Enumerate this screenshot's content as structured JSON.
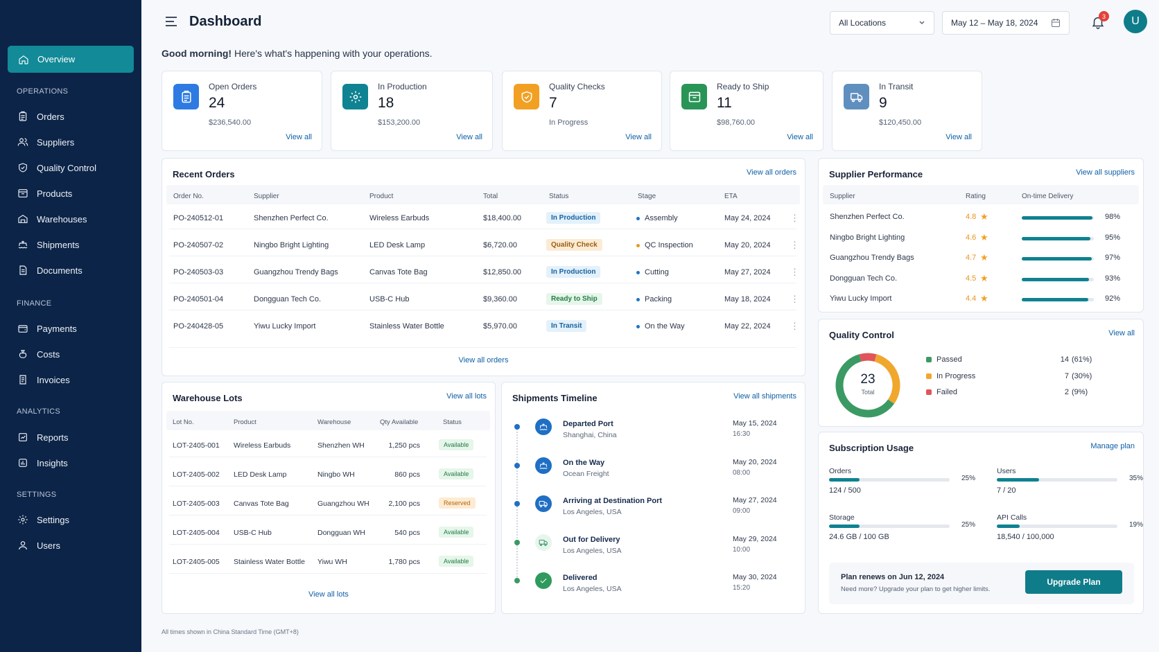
{
  "page": {
    "title": "Dashboard"
  },
  "sidebar": {
    "overview": "Overview",
    "sections": [
      {
        "label": "OPERATIONS",
        "items": [
          {
            "label": "Orders",
            "icon": "clipboard-icon"
          },
          {
            "label": "Suppliers",
            "icon": "users-icon"
          },
          {
            "label": "Quality Control",
            "icon": "shield-check-icon"
          },
          {
            "label": "Products",
            "icon": "box-icon"
          },
          {
            "label": "Warehouses",
            "icon": "warehouse-icon"
          },
          {
            "label": "Shipments",
            "icon": "ship-icon"
          },
          {
            "label": "Documents",
            "icon": "document-icon"
          }
        ]
      },
      {
        "label": "FINANCE",
        "items": [
          {
            "label": "Payments",
            "icon": "wallet-icon"
          },
          {
            "label": "Costs",
            "icon": "money-bag-icon"
          },
          {
            "label": "Invoices",
            "icon": "invoice-icon"
          }
        ]
      },
      {
        "label": "ANALYTICS",
        "items": [
          {
            "label": "Reports",
            "icon": "report-icon"
          },
          {
            "label": "Insights",
            "icon": "insights-icon"
          }
        ]
      },
      {
        "label": "SETTINGS",
        "items": [
          {
            "label": "Settings",
            "icon": "gear-icon"
          },
          {
            "label": "Users",
            "icon": "user-icon"
          }
        ]
      }
    ]
  },
  "header": {
    "location_select": "All Locations",
    "date_range": "May 12 – May 18, 2024",
    "notification_count": "3",
    "avatar_initial": "U"
  },
  "greeting": {
    "bold": "Good morning!",
    "text": " Here's what's happening with your operations."
  },
  "stats": [
    {
      "label": "Open Orders",
      "value": "24",
      "sub": "$236,540.00",
      "link": "View all",
      "color": "#2d7be2",
      "icon": "clipboard-icon"
    },
    {
      "label": "In Production",
      "value": "18",
      "sub": "$153,200.00",
      "link": "View all",
      "color": "#0f8391",
      "icon": "gear-icon"
    },
    {
      "label": "Quality Checks",
      "value": "7",
      "sub": "In Progress",
      "link": "View all",
      "color": "#f2a023",
      "icon": "shield-check-icon"
    },
    {
      "label": "Ready to Ship",
      "value": "11",
      "sub": "$98,760.00",
      "link": "View all",
      "color": "#289556",
      "icon": "box-icon"
    },
    {
      "label": "In Transit",
      "value": "9",
      "sub": "$120,450.00",
      "link": "View all",
      "color": "#5f8fbf",
      "icon": "truck-icon"
    }
  ],
  "recent_orders": {
    "title": "Recent Orders",
    "link": "View all orders",
    "footer_link": "View all orders",
    "columns": [
      "Order No.",
      "Supplier",
      "Product",
      "Total",
      "Status",
      "Stage",
      "ETA"
    ],
    "rows": [
      {
        "order": "PO-240512-01",
        "supplier": "Shenzhen Perfect Co.",
        "product": "Wireless Earbuds",
        "total": "$18,400.00",
        "status": "In Production",
        "status_kind": "blue",
        "stage": "Assembly",
        "stage_color": "#1f74c7",
        "eta": "May 24, 2024"
      },
      {
        "order": "PO-240507-02",
        "supplier": "Ningbo Bright Lighting",
        "product": "LED Desk Lamp",
        "total": "$6,720.00",
        "status": "Quality Check",
        "status_kind": "amber",
        "stage": "QC Inspection",
        "stage_color": "#e59a24",
        "eta": "May 20, 2024"
      },
      {
        "order": "PO-240503-03",
        "supplier": "Guangzhou Trendy Bags",
        "product": "Canvas Tote Bag",
        "total": "$12,850.00",
        "status": "In Production",
        "status_kind": "blue",
        "stage": "Cutting",
        "stage_color": "#1f74c7",
        "eta": "May 27, 2024"
      },
      {
        "order": "PO-240501-04",
        "supplier": "Dongguan Tech Co.",
        "product": "USB-C Hub",
        "total": "$9,360.00",
        "status": "Ready to Ship",
        "status_kind": "green",
        "stage": "Packing",
        "stage_color": "#1f74c7",
        "eta": "May 18, 2024"
      },
      {
        "order": "PO-240428-05",
        "supplier": "Yiwu Lucky Import",
        "product": "Stainless Water Bottle",
        "total": "$5,970.00",
        "status": "In Transit",
        "status_kind": "blue",
        "stage": "On the Way",
        "stage_color": "#1f74c7",
        "eta": "May 22, 2024"
      }
    ]
  },
  "supplier_performance": {
    "title": "Supplier Performance",
    "link": "View all suppliers",
    "columns": [
      "Supplier",
      "Rating",
      "On-time Delivery"
    ],
    "rows": [
      {
        "name": "Shenzhen Perfect Co.",
        "rating": "4.8",
        "ontime": "98%",
        "ontime_frac": 0.98
      },
      {
        "name": "Ningbo Bright Lighting",
        "rating": "4.6",
        "ontime": "95%",
        "ontime_frac": 0.95
      },
      {
        "name": "Guangzhou Trendy Bags",
        "rating": "4.7",
        "ontime": "97%",
        "ontime_frac": 0.97
      },
      {
        "name": "Dongguan Tech Co.",
        "rating": "4.5",
        "ontime": "93%",
        "ontime_frac": 0.93
      },
      {
        "name": "Yiwu Lucky Import",
        "rating": "4.4",
        "ontime": "92%",
        "ontime_frac": 0.92
      }
    ]
  },
  "quality_control": {
    "title": "Quality Control",
    "link": "View all",
    "total": "23",
    "total_label": "Total",
    "legend": [
      {
        "label": "Passed",
        "value": "14",
        "pct": "(61%)",
        "color": "#3b9a63",
        "count": 14
      },
      {
        "label": "In Progress",
        "value": "7",
        "pct": "(30%)",
        "color": "#f0a72e",
        "count": 7
      },
      {
        "label": "Failed",
        "value": "2",
        "pct": "(9%)",
        "color": "#e0555a",
        "count": 2
      }
    ]
  },
  "warehouse_lots": {
    "title": "Warehouse Lots",
    "link": "View all lots",
    "footer_link": "View all lots",
    "columns": [
      "Lot No.",
      "Product",
      "Warehouse",
      "Qty Available",
      "Status"
    ],
    "rows": [
      {
        "lot": "LOT-2405-001",
        "product": "Wireless Earbuds",
        "warehouse": "Shenzhen WH",
        "qty": "1,250 pcs",
        "status": "Available",
        "kind": "green"
      },
      {
        "lot": "LOT-2405-002",
        "product": "LED Desk Lamp",
        "warehouse": "Ningbo WH",
        "qty": "860 pcs",
        "status": "Available",
        "kind": "green"
      },
      {
        "lot": "LOT-2405-003",
        "product": "Canvas Tote Bag",
        "warehouse": "Guangzhou WH",
        "qty": "2,100 pcs",
        "status": "Reserved",
        "kind": "orange"
      },
      {
        "lot": "LOT-2405-004",
        "product": "USB-C Hub",
        "warehouse": "Dongguan WH",
        "qty": "540 pcs",
        "status": "Available",
        "kind": "green"
      },
      {
        "lot": "LOT-2405-005",
        "product": "Stainless Water Bottle",
        "warehouse": "Yiwu WH",
        "qty": "1,780 pcs",
        "status": "Available",
        "kind": "green"
      }
    ]
  },
  "shipments": {
    "title": "Shipments Timeline",
    "link": "View all shipments",
    "events": [
      {
        "title": "Departed Port",
        "place": "Shanghai, China",
        "date": "May 15, 2024",
        "time": "16:30",
        "color": "#1f6fc4",
        "icon": "ship-icon"
      },
      {
        "title": "On the Way",
        "place": "Ocean Freight",
        "date": "May 20, 2024",
        "time": "08:00",
        "color": "#1f6fc4",
        "icon": "ship-icon"
      },
      {
        "title": "Arriving at Destination Port",
        "place": "Los Angeles, USA",
        "date": "May 27, 2024",
        "time": "09:00",
        "color": "#1f6fc4",
        "icon": "truck-icon"
      },
      {
        "title": "Out for Delivery",
        "place": "Los Angeles, USA",
        "date": "May 29, 2024",
        "time": "10:00",
        "color": "#e8f5ee",
        "icon": "truck-icon"
      },
      {
        "title": "Delivered",
        "place": "Los Angeles, USA",
        "date": "May 30, 2024",
        "time": "15:20",
        "color": "#2f9a5d",
        "icon": "check-icon"
      }
    ]
  },
  "subscription": {
    "title": "Subscription Usage",
    "link": "Manage plan",
    "usage": [
      {
        "label": "Orders",
        "value": "124 / 500",
        "pct": "25%",
        "frac": 0.25
      },
      {
        "label": "Users",
        "value": "7 / 20",
        "pct": "35%",
        "frac": 0.35
      },
      {
        "label": "Storage",
        "value": "24.6 GB / 100 GB",
        "pct": "25%",
        "frac": 0.25
      },
      {
        "label": "API Calls",
        "value": "18,540 / 100,000",
        "pct": "19%",
        "frac": 0.19
      }
    ],
    "renew": "Plan renews on Jun 12, 2024",
    "renew_sub": "Need more? Upgrade your plan to get higher limits.",
    "upgrade": "Upgrade Plan"
  },
  "footer_note": "All times shown in China Standard Time (GMT+8)"
}
